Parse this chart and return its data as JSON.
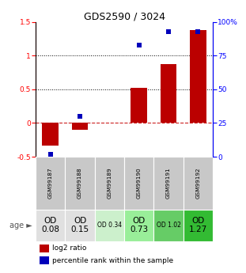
{
  "title": "GDS2590 / 3024",
  "samples": [
    "GSM99187",
    "GSM99188",
    "GSM99189",
    "GSM99190",
    "GSM99191",
    "GSM99192"
  ],
  "log2_ratio": [
    -0.33,
    -0.1,
    0.0,
    0.52,
    0.87,
    1.38
  ],
  "percentile_rank_pct": [
    2,
    30,
    0,
    83,
    93,
    93
  ],
  "ylim_left": [
    -0.5,
    1.5
  ],
  "ylim_right": [
    0,
    100
  ],
  "yticks_left": [
    -0.5,
    0.0,
    0.5,
    1.0,
    1.5
  ],
  "yticks_right": [
    0,
    25,
    50,
    75,
    100
  ],
  "bar_color": "#bb0000",
  "dot_color": "#0000bb",
  "zero_line_color": "#cc2222",
  "age_labels_big": [
    "OD\n0.08",
    "OD\n0.15",
    "",
    "OD\n0.73",
    "",
    "OD\n1.27"
  ],
  "age_labels_small": [
    "",
    "",
    "OD 0.34",
    "",
    "OD 1.02",
    ""
  ],
  "age_bg_colors": [
    "#e0e0e0",
    "#e0e0e0",
    "#ccf0cc",
    "#99ee99",
    "#66cc66",
    "#33bb33"
  ],
  "sample_bg_color": "#c8c8c8",
  "legend_log2": "log2 ratio",
  "legend_pct": "percentile rank within the sample"
}
